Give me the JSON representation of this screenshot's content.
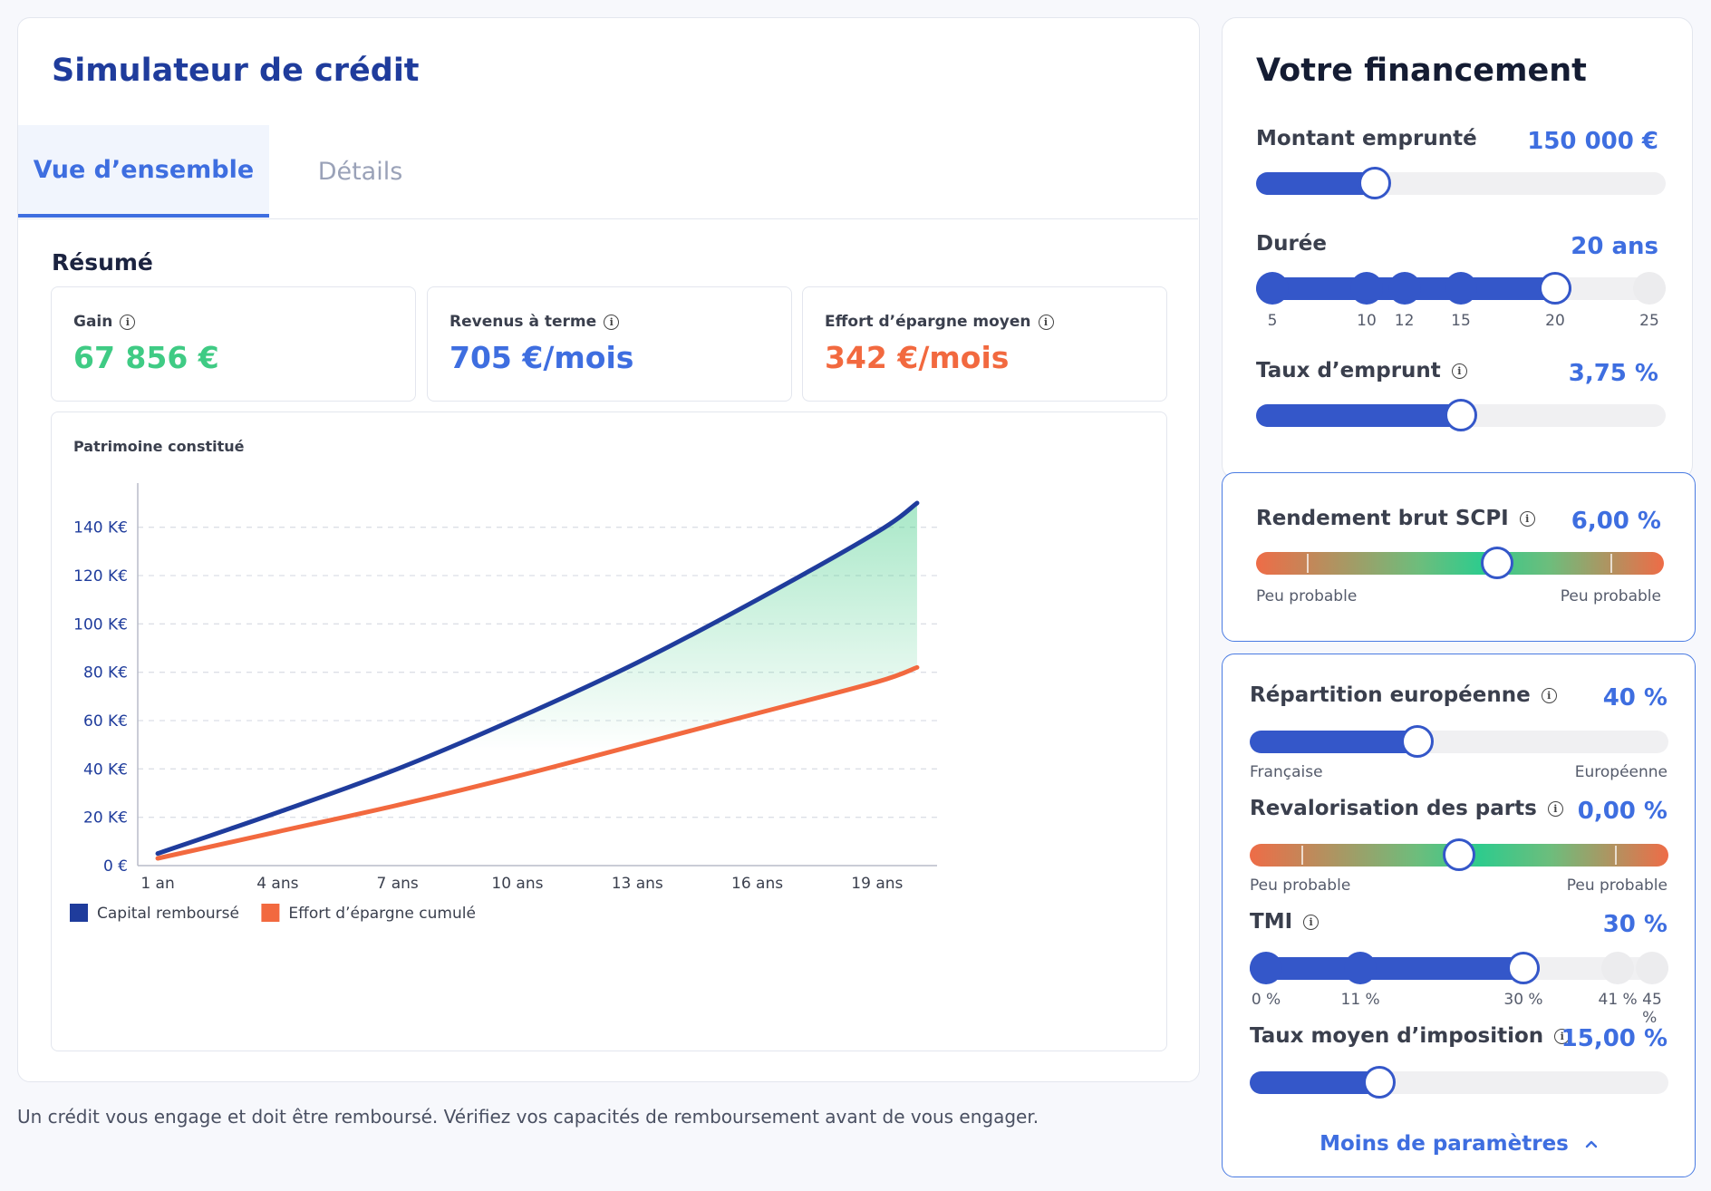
{
  "simulator": {
    "title": "Simulateur de crédit",
    "tabs": [
      {
        "label": "Vue d’ensemble",
        "active": true
      },
      {
        "label": "Détails",
        "active": false
      }
    ],
    "summary_heading": "Résumé",
    "stats": [
      {
        "label": "Gain",
        "value": "67 856 €",
        "color": "#3fcb84",
        "icon": "info-icon"
      },
      {
        "label": "Revenus à terme",
        "value": "705 €/mois",
        "color": "#3e6ee0",
        "icon": "info-icon"
      },
      {
        "label": "Effort d’épargne moyen",
        "value": "342 €/mois",
        "color": "#f2693f",
        "icon": "info-icon"
      }
    ],
    "disclaimer": "Un crédit vous engage et doit être remboursé. Vérifiez vos capacités de remboursement avant de vous engager."
  },
  "chart_data": {
    "type": "line",
    "title": "Patrimoine constitué",
    "x_labels": [
      "1 an",
      "4 ans",
      "7 ans",
      "10 ans",
      "13 ans",
      "16 ans",
      "19 ans"
    ],
    "x": [
      1,
      4,
      7,
      10,
      13,
      16,
      19,
      20
    ],
    "y_ticks": [
      "0 €",
      "20 K€",
      "40 K€",
      "60 K€",
      "80 K€",
      "100 K€",
      "120 K€",
      "140 K€"
    ],
    "ylim": [
      0,
      150
    ],
    "x_range": [
      0.5,
      20.5
    ],
    "grid": true,
    "legend": "bottom-left",
    "series": [
      {
        "name": "Capital remboursé",
        "color": "#1f3c9c",
        "values": [
          5,
          22,
          40,
          61,
          84,
          110,
          138,
          150
        ]
      },
      {
        "name": "Effort d’épargne cumulé",
        "color": "#f2693f",
        "values": [
          3,
          14,
          25,
          37,
          50,
          63,
          76,
          82
        ]
      }
    ],
    "gain_area_color": "#3fcb84"
  },
  "financing": {
    "title": "Votre financement",
    "amount": {
      "label": "Montant emprunté",
      "value": "150 000 €",
      "fraction": 0.29
    },
    "duration": {
      "label": "Durée",
      "value": "20 ans",
      "steps": [
        "5",
        "10",
        "12",
        "15",
        "20",
        "25"
      ],
      "step_values": [
        5,
        10,
        12,
        15,
        20,
        25
      ],
      "selected": 20
    },
    "rate": {
      "label": "Taux d’emprunt",
      "value": "3,75 %",
      "fraction": 0.5
    }
  },
  "scpi": {
    "label": "Rendement brut SCPI",
    "value": "6,00 %",
    "fraction": 0.59,
    "caption_left": "Peu probable",
    "caption_right": "Peu probable"
  },
  "params": {
    "repartition": {
      "label": "Répartition européenne",
      "value": "40 %",
      "fraction": 0.4,
      "caption_left": "Française",
      "caption_right": "Européenne"
    },
    "revalorisation": {
      "label": "Revalorisation des parts",
      "value": "0,00 %",
      "fraction": 0.5,
      "caption_left": "Peu probable",
      "caption_right": "Peu probable"
    },
    "tmi": {
      "label": "TMI",
      "value": "30 %",
      "steps": [
        "0 %",
        "11 %",
        "30 %",
        "41 %",
        "45 %"
      ],
      "step_values": [
        0,
        11,
        30,
        41,
        45
      ],
      "selected": 30
    },
    "avg_tax": {
      "label": "Taux moyen d’imposition",
      "value": "15,00 %",
      "fraction": 0.31
    },
    "less_params_label": "Moins de paramètres",
    "less_params_icon": "chevron-up-icon"
  }
}
